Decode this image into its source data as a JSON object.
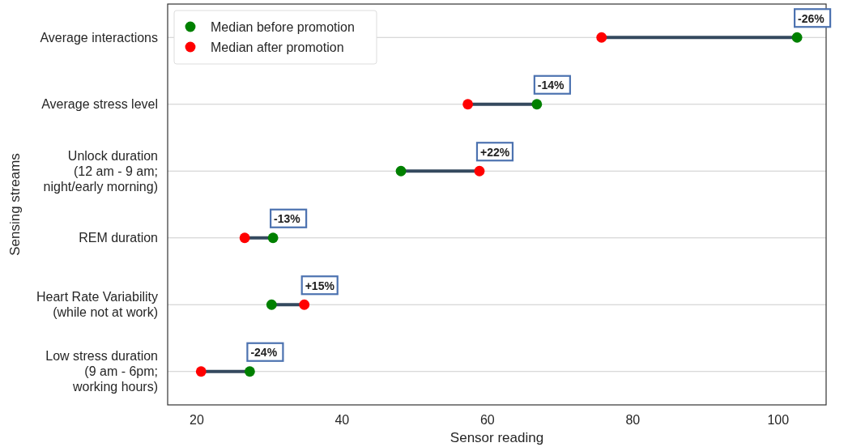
{
  "chart_data": {
    "type": "scatter",
    "xlabel": "Sensor reading",
    "ylabel": "Sensing streams",
    "categories": [
      "Average interactions",
      "Average stress level",
      "Unlock duration\n(12 am - 9 am;\nnight/early morning)",
      "REM duration",
      "Heart Rate Variability\n(while not at work)",
      "Low stress duration\n(9 am - 6pm;\nworking hours)"
    ],
    "orientation": "horizontal",
    "series": [
      {
        "name": "Median before promotion",
        "color": "#008000",
        "values": [
          102.6,
          66.8,
          48.1,
          30.5,
          30.3,
          27.3
        ]
      },
      {
        "name": "Median after promotion",
        "color": "#ff0000",
        "values": [
          75.7,
          57.3,
          58.9,
          26.6,
          34.8,
          20.6
        ]
      }
    ],
    "xlim": [
      16,
      106.6
    ],
    "xticks": [
      20,
      40,
      60,
      80,
      100
    ],
    "grid": "y",
    "legend": "top left",
    "marker": "circle",
    "annotations": [
      {
        "text": "-26%",
        "x": 102.6,
        "y": "Average interactions"
      },
      {
        "text": "-14%",
        "x": 66.8,
        "y": "Average stress level"
      },
      {
        "text": "+22%",
        "x": 58.9,
        "y": "Unlock duration\n(12 am - 9 am;\nnight/early morning)"
      },
      {
        "text": "-13%",
        "x": 30.5,
        "y": "REM duration"
      },
      {
        "text": "+15%",
        "x": 34.8,
        "y": "Heart Rate Variability\n(while not at work)"
      },
      {
        "text": "-24%",
        "x": 27.3,
        "y": "Low stress duration\n(9 am - 6pm;\nworking hours)"
      }
    ]
  }
}
